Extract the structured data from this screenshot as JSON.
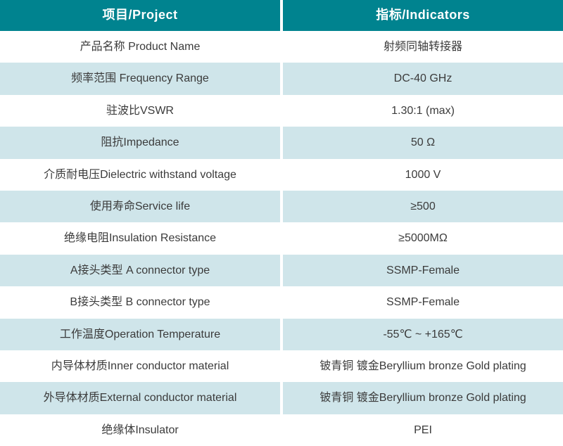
{
  "table": {
    "header": {
      "project": "项目/Project",
      "indicators": "指标/Indicators"
    },
    "rows": [
      {
        "project": "产品名称 Product Name",
        "indicator": "射频同轴转接器"
      },
      {
        "project": "频率范围 Frequency Range",
        "indicator": "DC-40 GHz"
      },
      {
        "project": "驻波比VSWR",
        "indicator": "1.30:1 (max)"
      },
      {
        "project": "阻抗Impedance",
        "indicator": "50 Ω"
      },
      {
        "project": "介质耐电压Dielectric withstand voltage",
        "indicator": "1000 V"
      },
      {
        "project": "使用寿命Service life",
        "indicator": "≥500"
      },
      {
        "project": "绝缘电阻Insulation Resistance",
        "indicator": "≥5000MΩ"
      },
      {
        "project": "A接头类型 A connector type",
        "indicator": "SSMP-Female"
      },
      {
        "project": "B接头类型 B connector type",
        "indicator": "SSMP-Female"
      },
      {
        "project": "工作温度Operation Temperature",
        "indicator": "-55℃ ~ +165℃"
      },
      {
        "project": "内导体材质Inner conductor material",
        "indicator": "铍青铜 镀金Beryllium bronze Gold plating"
      },
      {
        "project": "外导体材质External conductor material",
        "indicator": "铍青铜 镀金Beryllium bronze Gold plating"
      },
      {
        "project": "绝缘体Insulator",
        "indicator": "PEI"
      }
    ],
    "colors": {
      "header_bg": "#00838F",
      "header_text": "#ffffff",
      "row_bg": "#ffffff",
      "row_alt_bg": "#cfe5ea",
      "text": "#3b3b3b"
    }
  }
}
